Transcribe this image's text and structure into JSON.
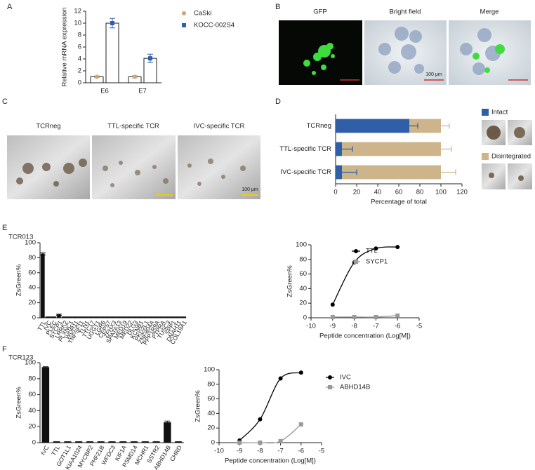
{
  "panel_labels": [
    "A",
    "B",
    "C",
    "D",
    "E",
    "F"
  ],
  "images": {
    "B": {
      "labels": [
        "GFP",
        "Bright field",
        "Merge"
      ],
      "scale_bar": "100 μm"
    },
    "C": {
      "labels": [
        "TCRneg",
        "TTL-specific TCR",
        "IVC-specific TCR"
      ],
      "scale_bar": "100 μm"
    }
  },
  "chart_data": [
    {
      "type": "bar",
      "y_label": "Relative mRNA expression",
      "categories": [
        "E6",
        "E7"
      ],
      "series": [
        {
          "name": "CaSki",
          "color": "#c9a77c",
          "values": [
            1,
            1
          ],
          "errors": [
            0.15,
            0.2
          ]
        },
        {
          "name": "KOCC-002S4",
          "color": "#2f5fa8",
          "values": [
            10,
            4.1
          ],
          "errors": [
            0.8,
            0.7
          ]
        }
      ],
      "ylim": [
        0,
        12
      ],
      "yticks": [
        0,
        2,
        4,
        6,
        8,
        10,
        12
      ]
    },
    {
      "type": "bar",
      "orientation": "horizontal",
      "stacked": true,
      "x_label": "Percentage of total",
      "categories": [
        "TCRneg",
        "TTL-specific TCR",
        "IVC-specific TCR"
      ],
      "series": [
        {
          "name": "Intact",
          "color": "#2e5fa8",
          "values": [
            70,
            6,
            6
          ],
          "errors": [
            8,
            10,
            14
          ]
        },
        {
          "name": "Disintegrated",
          "color": "#cdb48a",
          "values": [
            30,
            94,
            94
          ],
          "errors": [
            8,
            10,
            14
          ]
        }
      ],
      "xlim": [
        0,
        120
      ],
      "xticks": [
        0,
        20,
        40,
        60,
        80,
        100,
        120
      ]
    },
    {
      "type": "bar",
      "title": "TCR013",
      "y_label": "ZsGreen%",
      "color": "#111111",
      "categories": [
        "TTL",
        "IVC",
        "PLEC",
        "SYCP1",
        "LRRK2",
        "PLXNC1",
        "WDR11",
        "TNFSF11",
        "TLN1",
        "TTC17",
        "UGGT1",
        "LGR6",
        "CEP57",
        "ZFHX3",
        "SPATA13",
        "MED19",
        "MED22",
        "DLG3",
        "KCNB1",
        "PKD2L1",
        "ZNF804A",
        "PPP1R9A",
        "PTPRA",
        "TUSC3",
        "SPP1",
        "DNAH11",
        "COL19A1"
      ],
      "values": [
        85,
        1,
        1,
        4,
        1,
        1,
        1,
        1,
        1,
        1,
        1,
        1,
        1,
        1,
        1,
        1,
        1,
        1,
        1,
        1,
        1,
        1,
        1,
        1,
        1,
        1,
        1
      ],
      "errors": [
        1.5,
        0.2,
        0.2,
        0.8,
        0.2,
        0.2,
        0.2,
        0.2,
        0.2,
        0.2,
        0.2,
        0.2,
        0.2,
        0.2,
        0.2,
        0.2,
        0.2,
        0.2,
        0.2,
        0.2,
        0.2,
        0.2,
        0.2,
        0.2,
        0.2,
        0.2,
        0.2
      ],
      "ylim": [
        0,
        100
      ],
      "yticks": [
        0,
        20,
        40,
        60,
        80,
        100
      ]
    },
    {
      "type": "line",
      "x_label": "Peptide concentration (Log[M])",
      "y_label": "ZsGreen%",
      "x": [
        -9,
        -8,
        -7,
        -6
      ],
      "series": [
        {
          "name": "TTL",
          "color": "#000000",
          "values": [
            18,
            76,
            95,
            97
          ]
        },
        {
          "name": "SYCP1",
          "color": "#999999",
          "values": [
            1,
            1,
            1,
            3
          ]
        }
      ],
      "xlim": [
        -10,
        -5
      ],
      "xticks": [
        -10,
        -9,
        -8,
        -7,
        -6,
        -5
      ],
      "ylim": [
        0,
        100
      ],
      "yticks": [
        0,
        20,
        40,
        60,
        80,
        100
      ]
    },
    {
      "type": "bar",
      "title": "TCR123",
      "y_label": "ZsGreen%",
      "color": "#111111",
      "categories": [
        "IVC",
        "TTL",
        "GOT1L1",
        "KIAA1024",
        "MYCBP2",
        "PHF21B",
        "WFDC3",
        "KIF1A",
        "PSMD14",
        "MCHR1",
        "SSTR2",
        "ABHD14B",
        "CHRD"
      ],
      "values": [
        94,
        1,
        1,
        1,
        1,
        1,
        1,
        1,
        1,
        1,
        1,
        25,
        1
      ],
      "errors": [
        1,
        0.2,
        0.2,
        0.2,
        0.2,
        0.2,
        0.2,
        0.2,
        0.2,
        0.2,
        0.2,
        2,
        0.2
      ],
      "ylim": [
        0,
        100
      ],
      "yticks": [
        0,
        20,
        40,
        60,
        80,
        100
      ]
    },
    {
      "type": "line",
      "x_label": "Peptide concentration (Log[M])",
      "y_label": "ZsGreen%",
      "x": [
        -9,
        -8,
        -7,
        -6
      ],
      "series": [
        {
          "name": "IVC",
          "color": "#000000",
          "values": [
            3,
            32,
            88,
            96
          ]
        },
        {
          "name": "ABHD14B",
          "color": "#999999",
          "values": [
            0,
            0,
            2,
            25
          ]
        }
      ],
      "xlim": [
        -10,
        -5
      ],
      "xticks": [
        -10,
        -9,
        -8,
        -7,
        -6,
        -5
      ],
      "ylim": [
        0,
        100
      ],
      "yticks": [
        0,
        20,
        40,
        60,
        80,
        100
      ]
    }
  ]
}
